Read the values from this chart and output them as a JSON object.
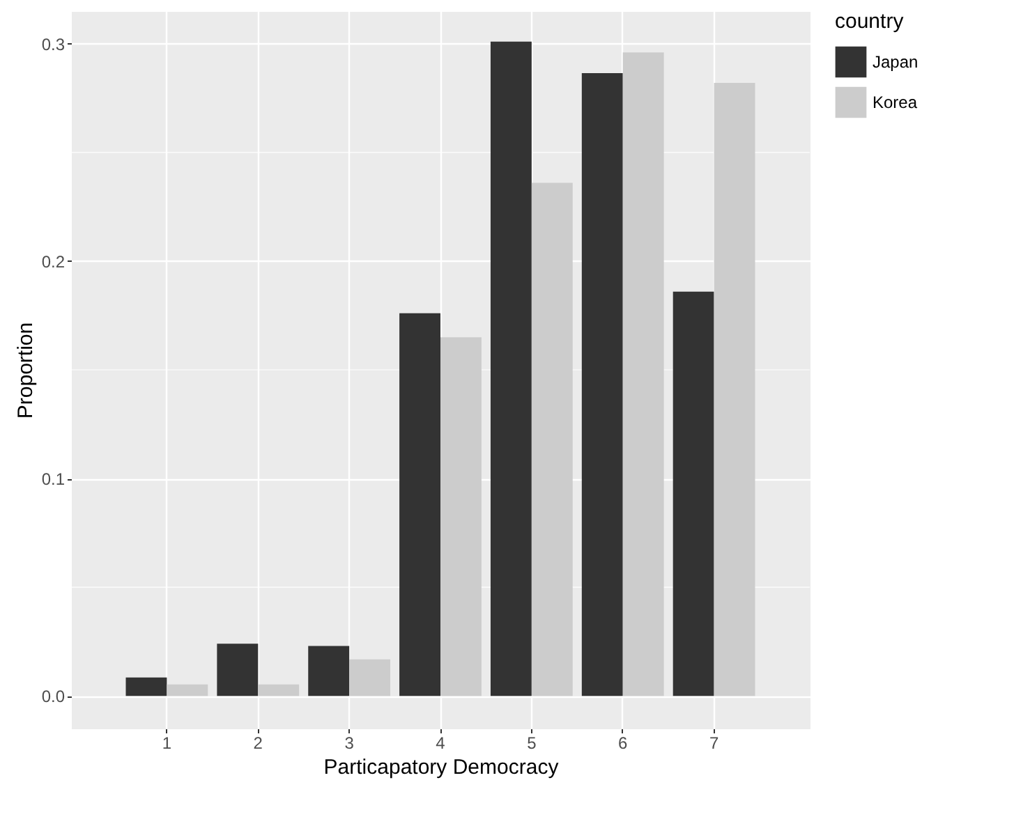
{
  "chart_data": {
    "type": "bar",
    "xlabel": "Particapatory Democracy",
    "ylabel": "Proportion",
    "legend_title": "country",
    "categories": [
      "1",
      "2",
      "3",
      "4",
      "5",
      "6",
      "7"
    ],
    "series": [
      {
        "name": "Japan",
        "color": "#333333",
        "values": [
          0.0085,
          0.024,
          0.023,
          0.176,
          0.301,
          0.2865,
          0.186
        ]
      },
      {
        "name": "Korea",
        "color": "#cccccc",
        "values": [
          0.0053,
          0.0053,
          0.0168,
          0.165,
          0.236,
          0.296,
          0.282
        ]
      }
    ],
    "ylim": [
      -0.015,
      0.315
    ],
    "yticks": [
      {
        "value": 0,
        "label": "0.0"
      },
      {
        "value": 0.1,
        "label": "0.1"
      },
      {
        "value": 0.2,
        "label": "0.2"
      },
      {
        "value": 0.3,
        "label": "0.3"
      }
    ],
    "grid": true,
    "legend": "right"
  }
}
